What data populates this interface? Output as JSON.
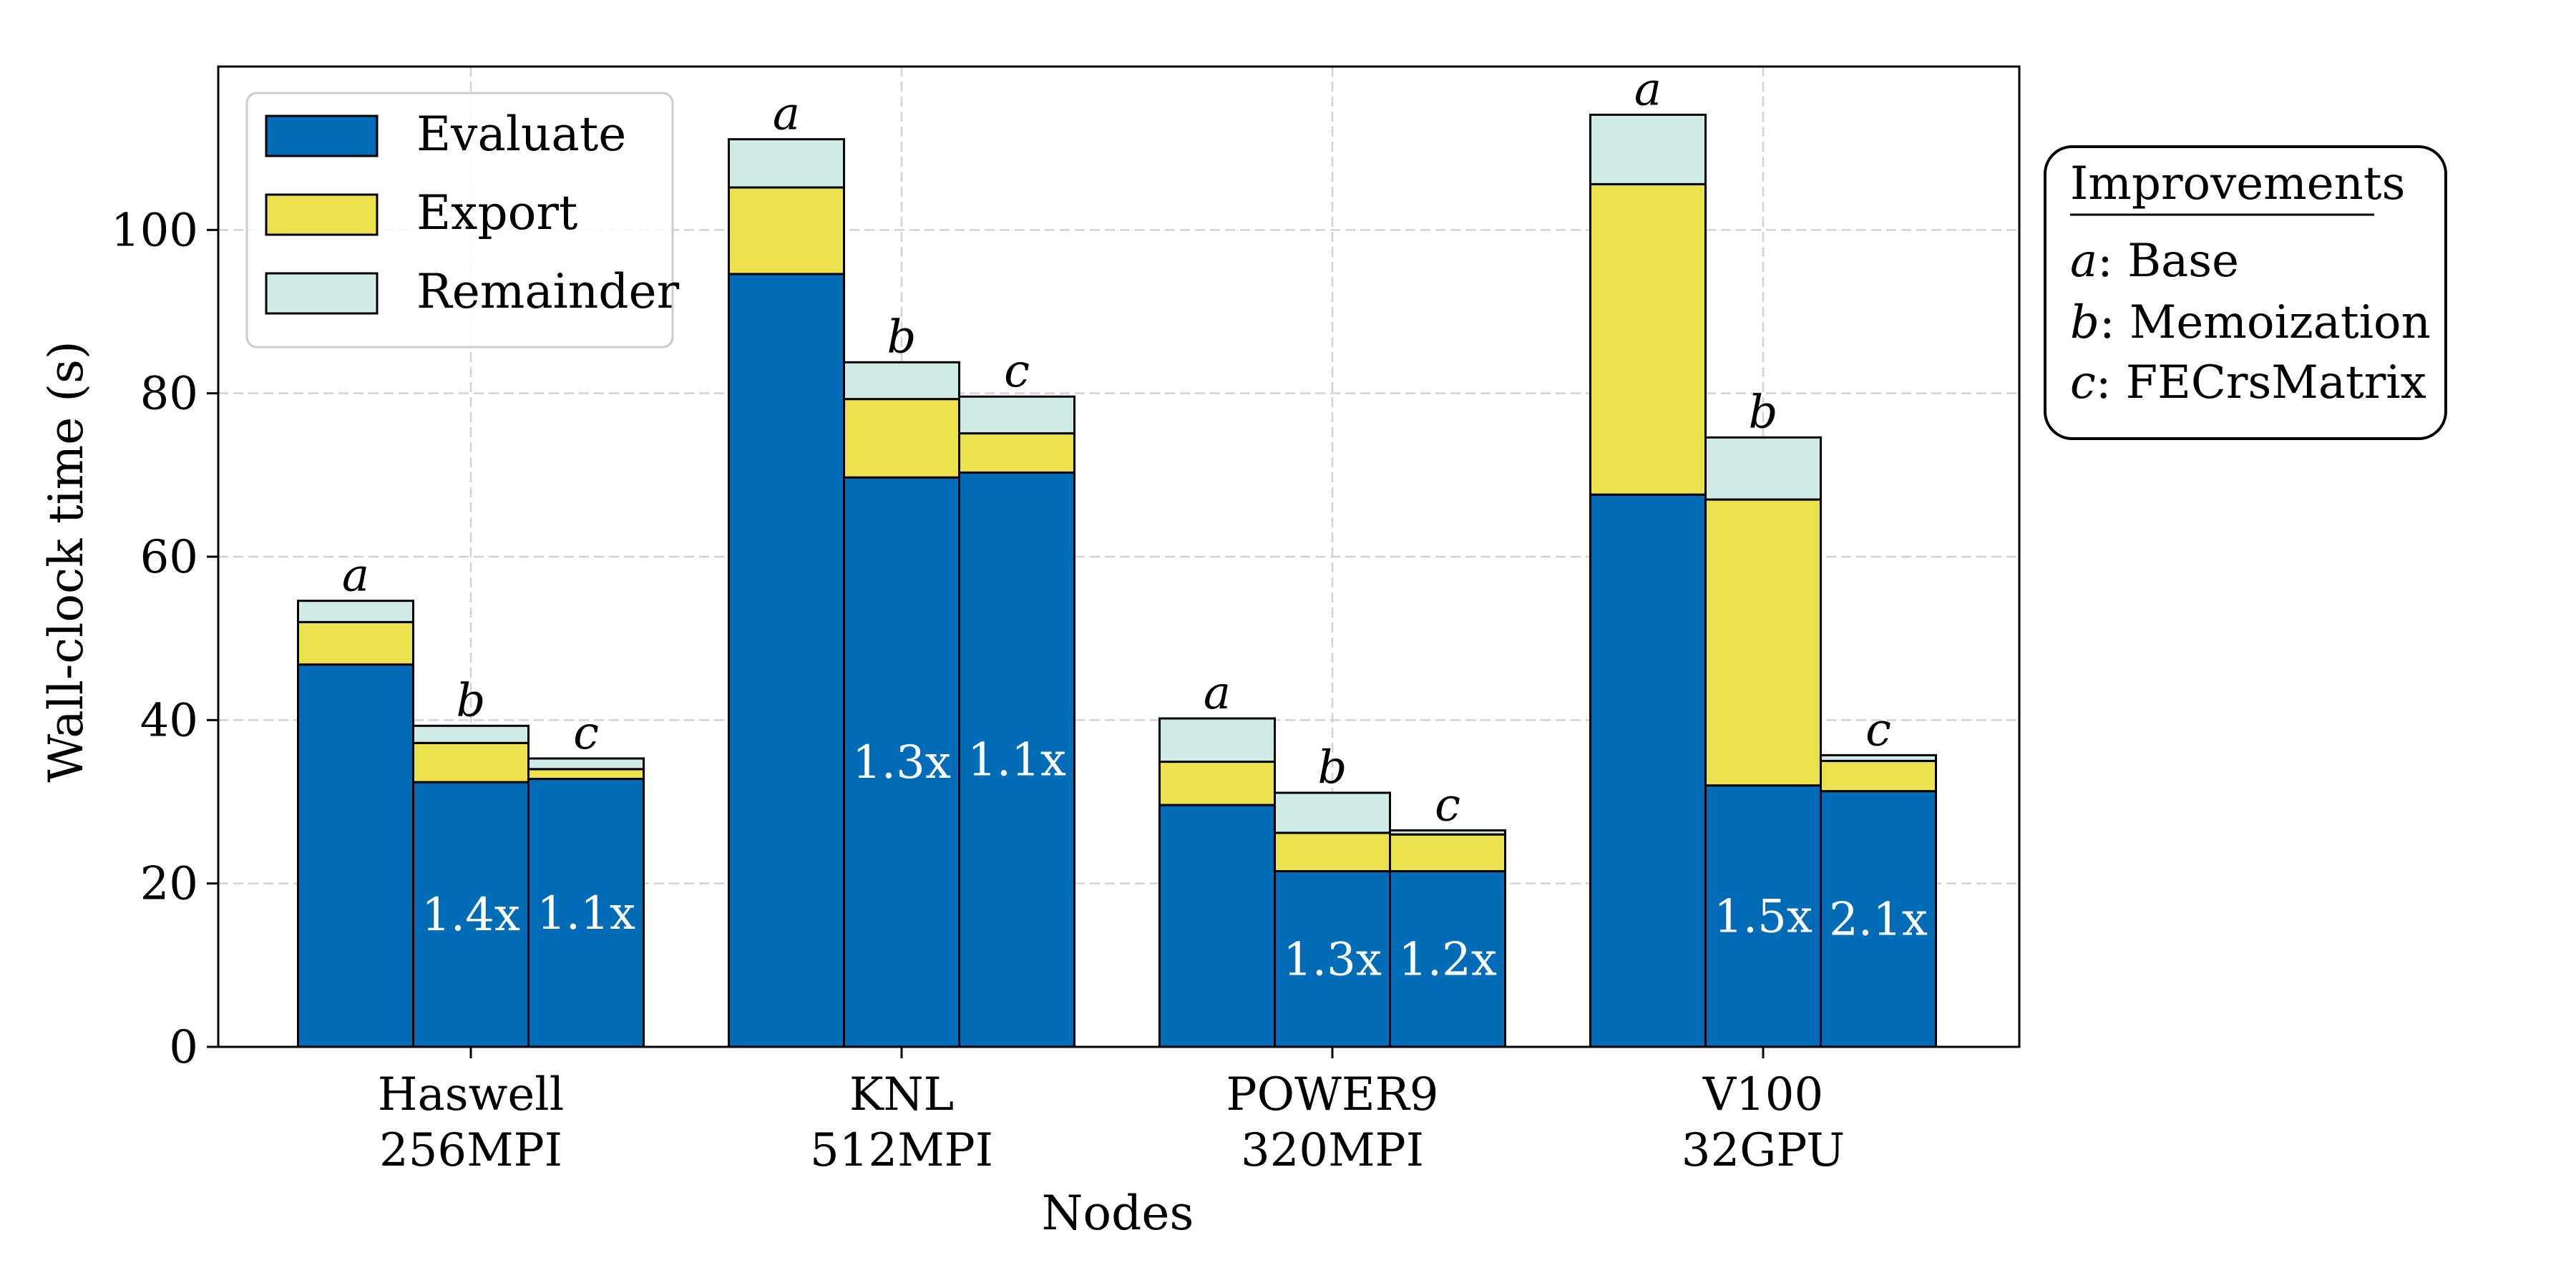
{
  "chart_data": {
    "type": "bar",
    "stacked": true,
    "title": "",
    "xlabel": "Nodes",
    "ylabel": "Wall-clock time (s)",
    "ylim": [
      0,
      120
    ],
    "yticks": [
      0,
      20,
      40,
      60,
      80,
      100
    ],
    "grid": true,
    "legend_position": "top-left",
    "colors": {
      "Evaluate": "#006bb6",
      "Export": "#ece04d",
      "Remainder": "#d0ebe6"
    },
    "segments": [
      "Evaluate",
      "Export",
      "Remainder"
    ],
    "groups": [
      {
        "line1": "Haswell",
        "line2": "256MPI",
        "bars": [
          {
            "label": "a",
            "evaluate": 46.8,
            "export": 5.2,
            "remainder": 2.6,
            "speedup": ""
          },
          {
            "label": "b",
            "evaluate": 32.4,
            "export": 4.8,
            "remainder": 2.1,
            "speedup": "1.4x"
          },
          {
            "label": "c",
            "evaluate": 32.8,
            "export": 1.2,
            "remainder": 1.3,
            "speedup": "1.1x"
          }
        ]
      },
      {
        "line1": "KNL",
        "line2": "512MPI",
        "bars": [
          {
            "label": "a",
            "evaluate": 94.6,
            "export": 10.6,
            "remainder": 5.9,
            "speedup": ""
          },
          {
            "label": "b",
            "evaluate": 69.7,
            "export": 9.6,
            "remainder": 4.5,
            "speedup": "1.3x"
          },
          {
            "label": "c",
            "evaluate": 70.3,
            "export": 4.8,
            "remainder": 4.5,
            "speedup": "1.1x"
          }
        ]
      },
      {
        "line1": "POWER9",
        "line2": "320MPI",
        "bars": [
          {
            "label": "a",
            "evaluate": 29.6,
            "export": 5.3,
            "remainder": 5.3,
            "speedup": ""
          },
          {
            "label": "b",
            "evaluate": 21.5,
            "export": 4.7,
            "remainder": 4.9,
            "speedup": "1.3x"
          },
          {
            "label": "c",
            "evaluate": 21.5,
            "export": 4.5,
            "remainder": 0.5,
            "speedup": "1.2x"
          }
        ]
      },
      {
        "line1": "V100",
        "line2": "32GPU",
        "bars": [
          {
            "label": "a",
            "evaluate": 67.6,
            "export": 38.0,
            "remainder": 8.5,
            "speedup": ""
          },
          {
            "label": "b",
            "evaluate": 32.0,
            "export": 35.0,
            "remainder": 7.6,
            "speedup": "1.5x"
          },
          {
            "label": "c",
            "evaluate": 31.3,
            "export": 3.7,
            "remainder": 0.7,
            "speedup": "2.1x"
          }
        ]
      }
    ],
    "improvements": {
      "title": "Improvements",
      "items": [
        {
          "key": "a",
          "text": ": Base"
        },
        {
          "key": "b",
          "text": ": Memoization"
        },
        {
          "key": "c",
          "text": ": FECrsMatrix"
        }
      ]
    }
  }
}
